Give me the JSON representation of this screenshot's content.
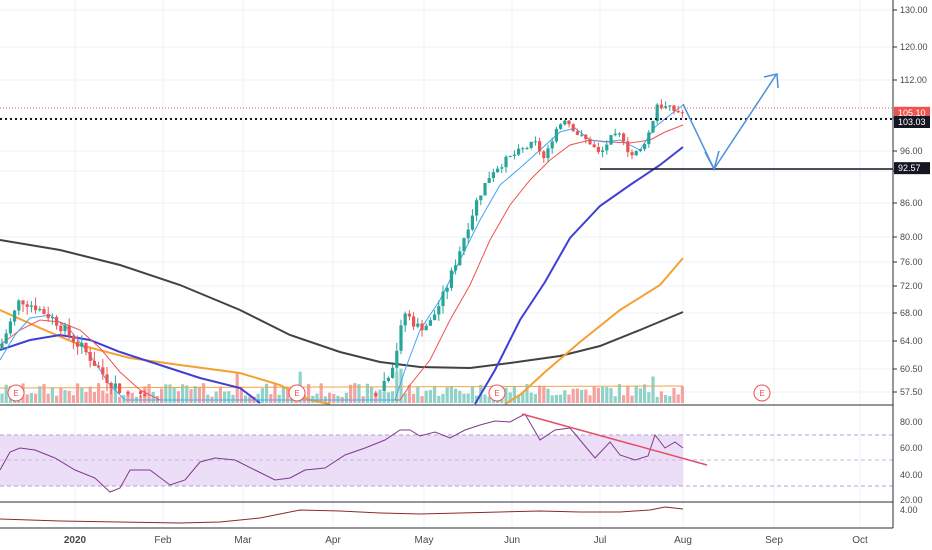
{
  "chart_data": {
    "type": "candlestick",
    "price_axis": {
      "ticks": [
        "130.00",
        "120.00",
        "112.00",
        "104.00",
        "96.00",
        "92.00",
        "86.00",
        "80.00",
        "76.00",
        "72.00",
        "68.00",
        "64.00",
        "60.50",
        "57.50"
      ],
      "labels": [
        {
          "text": "105.10",
          "value": 105.1,
          "bg": "#ef5350",
          "fg": "#ffffff"
        },
        {
          "text": "103.03",
          "value": 103.03,
          "bg": "#131722",
          "fg": "#ffffff"
        },
        {
          "text": "92.57",
          "value": 92.57,
          "bg": "#131722",
          "fg": "#ffffff"
        }
      ]
    },
    "time_axis": {
      "labels": [
        {
          "text": "2020",
          "bold": true
        },
        {
          "text": "Feb",
          "bold": false
        },
        {
          "text": "Mar",
          "bold": false
        },
        {
          "text": "Apr",
          "bold": false
        },
        {
          "text": "May",
          "bold": false
        },
        {
          "text": "Jun",
          "bold": false
        },
        {
          "text": "Jul",
          "bold": false
        },
        {
          "text": "Aug",
          "bold": false
        },
        {
          "text": "Sep",
          "bold": false
        },
        {
          "text": "Oct",
          "bold": false
        }
      ]
    },
    "earnings_marker": "E",
    "moving_averages": [
      {
        "color": "#42a5f5",
        "period": "short"
      },
      {
        "color": "#ef5350",
        "period": "medium"
      },
      {
        "color": "#3f3fd6",
        "period": "50"
      },
      {
        "color": "#f5a033",
        "period": "100"
      },
      {
        "color": "#424242",
        "period": "200"
      }
    ],
    "horizontal_levels": [
      {
        "value": 103.03,
        "style": "dotted",
        "color": "#131722"
      },
      {
        "value": 92.57,
        "style": "solid",
        "color": "#131722"
      },
      {
        "value": 105.1,
        "style": "dotted",
        "color": "#ef5350"
      }
    ],
    "projection_arrow": {
      "color": "#4a90d9",
      "points": [
        [
          105.1,
          "Jul 31"
        ],
        [
          92.57,
          "Aug 10"
        ],
        [
          113.5,
          "Aug 31"
        ]
      ]
    },
    "rsi": {
      "ticks": [
        "80.00",
        "60.00",
        "40.00",
        "20.00"
      ],
      "band_upper": 70,
      "band_lower": 30,
      "line_color": "#7e3a8c",
      "divergence_line_color": "#e0506a"
    },
    "bottom_indicator": {
      "ticks": [
        "4.00"
      ],
      "line_color": "#8b2a2a"
    }
  }
}
